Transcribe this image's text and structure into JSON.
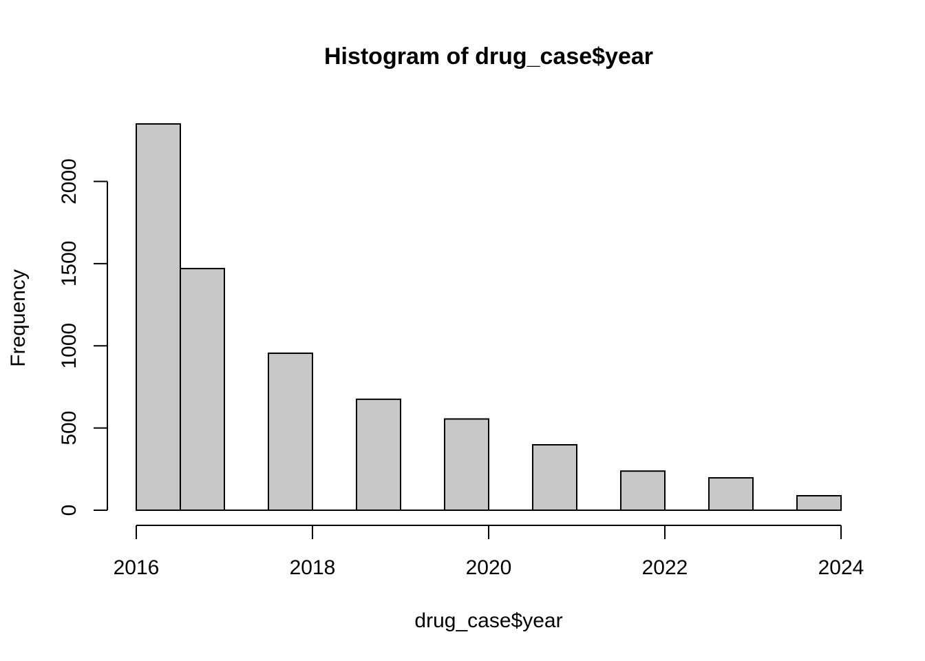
{
  "chart_data": {
    "type": "bar",
    "subtype": "histogram",
    "title": "Histogram of drug_case$year",
    "xlabel": "drug_case$year",
    "ylabel": "Frequency",
    "bar_color": "#c8c8c8",
    "border_color": "#000000",
    "bins": [
      {
        "x0": 2016.0,
        "x1": 2016.5,
        "count": 2350
      },
      {
        "x0": 2016.5,
        "x1": 2017.0,
        "count": 1470
      },
      {
        "x0": 2017.0,
        "x1": 2017.5,
        "count": 0
      },
      {
        "x0": 2017.5,
        "x1": 2018.0,
        "count": 955
      },
      {
        "x0": 2018.0,
        "x1": 2018.5,
        "count": 0
      },
      {
        "x0": 2018.5,
        "x1": 2019.0,
        "count": 675
      },
      {
        "x0": 2019.0,
        "x1": 2019.5,
        "count": 0
      },
      {
        "x0": 2019.5,
        "x1": 2020.0,
        "count": 555
      },
      {
        "x0": 2020.0,
        "x1": 2020.5,
        "count": 0
      },
      {
        "x0": 2020.5,
        "x1": 2021.0,
        "count": 398
      },
      {
        "x0": 2021.0,
        "x1": 2021.5,
        "count": 0
      },
      {
        "x0": 2021.5,
        "x1": 2022.0,
        "count": 238
      },
      {
        "x0": 2022.0,
        "x1": 2022.5,
        "count": 0
      },
      {
        "x0": 2022.5,
        "x1": 2023.0,
        "count": 197
      },
      {
        "x0": 2023.0,
        "x1": 2023.5,
        "count": 0
      },
      {
        "x0": 2023.5,
        "x1": 2024.0,
        "count": 88
      }
    ],
    "xlim": [
      2016,
      2024
    ],
    "ylim": [
      0,
      2350
    ],
    "x_ticks": [
      2016,
      2018,
      2020,
      2022,
      2024
    ],
    "x_tick_labels": [
      "2016",
      "2018",
      "2020",
      "2022",
      "2024"
    ],
    "y_ticks": [
      0,
      500,
      1000,
      1500,
      2000
    ],
    "y_tick_labels": [
      "0",
      "500",
      "1000",
      "1500",
      "2000"
    ],
    "grid": false,
    "legend": "none"
  }
}
